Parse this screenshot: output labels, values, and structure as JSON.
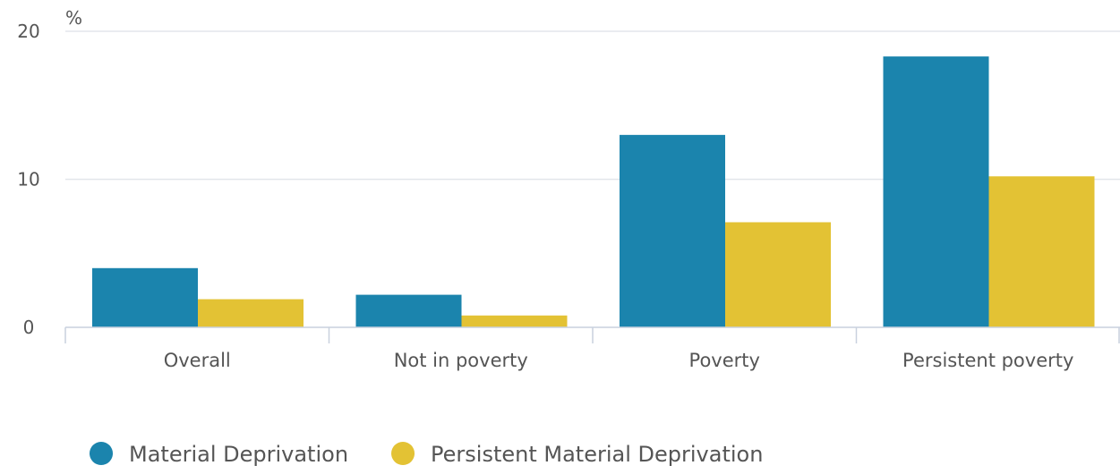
{
  "chart_data": {
    "type": "bar",
    "title": "",
    "xlabel": "",
    "ylabel": "%",
    "ylim": [
      0,
      20
    ],
    "yticks": [
      0,
      10,
      20
    ],
    "grid": true,
    "legend_position": "bottom-left",
    "categories": [
      "Overall",
      "Not in poverty",
      "Poverty",
      "Persistent poverty"
    ],
    "series": [
      {
        "name": "Material Deprivation",
        "color": "#1b84ad",
        "values": [
          4.0,
          2.2,
          13.0,
          18.3
        ]
      },
      {
        "name": "Persistent Material Deprivation",
        "color": "#e3c234",
        "values": [
          1.9,
          0.8,
          7.1,
          10.2
        ]
      }
    ]
  }
}
